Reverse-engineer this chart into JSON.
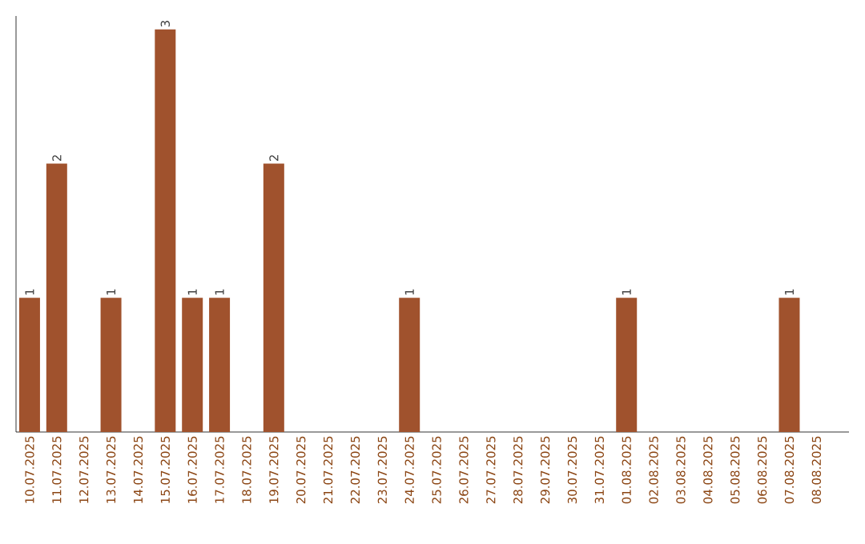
{
  "chart_data": {
    "type": "bar",
    "categories": [
      "10.07.2025",
      "11.07.2025",
      "12.07.2025",
      "13.07.2025",
      "14.07.2025",
      "15.07.2025",
      "16.07.2025",
      "17.07.2025",
      "18.07.2025",
      "19.07.2025",
      "20.07.2025",
      "21.07.2025",
      "22.07.2025",
      "23.07.2025",
      "24.07.2025",
      "25.07.2025",
      "26.07.2025",
      "27.07.2025",
      "28.07.2025",
      "29.07.2025",
      "30.07.2025",
      "31.07.2025",
      "01.08.2025",
      "02.08.2025",
      "03.08.2025",
      "04.08.2025",
      "05.08.2025",
      "06.08.2025",
      "07.08.2025",
      "08.08.2025"
    ],
    "values": [
      1,
      2,
      0,
      1,
      0,
      3,
      1,
      1,
      0,
      2,
      0,
      0,
      0,
      0,
      1,
      0,
      0,
      0,
      0,
      0,
      0,
      0,
      1,
      0,
      0,
      0,
      0,
      0,
      1,
      0
    ],
    "value_labels": [
      "1",
      "2",
      null,
      "1",
      null,
      "3",
      "1",
      "1",
      null,
      "2",
      null,
      null,
      null,
      null,
      "1",
      null,
      null,
      null,
      null,
      null,
      null,
      null,
      "1",
      null,
      null,
      null,
      null,
      null,
      "1",
      null
    ],
    "color": "#a0522d",
    "ylim": [
      0,
      3.1
    ],
    "tick_labels": "x"
  }
}
